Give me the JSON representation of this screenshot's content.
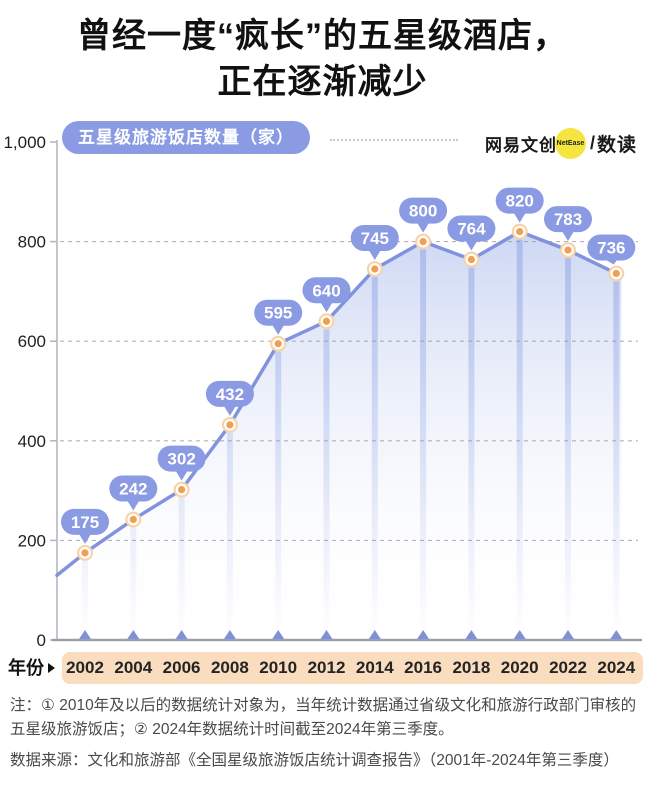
{
  "title": {
    "line1": "曾经一度“疯长”的五星级酒店，",
    "line2": "正在逐渐减少"
  },
  "header": {
    "legend_label": "五星级旅游饭店数量（家）",
    "brand": {
      "name": "网易文创",
      "badge": "NetEase",
      "separator": "/",
      "sub": "数读"
    }
  },
  "chart_data": {
    "type": "line",
    "title": "五星级旅游饭店数量（家）",
    "categories": [
      "2002",
      "2004",
      "2006",
      "2008",
      "2010",
      "2012",
      "2014",
      "2016",
      "2018",
      "2020",
      "2022",
      "2024"
    ],
    "values": [
      175,
      242,
      302,
      432,
      595,
      640,
      745,
      800,
      764,
      820,
      783,
      736
    ],
    "line_start_value": 130,
    "x_axis_label": "年份",
    "ylim": [
      0,
      1000
    ],
    "yticks": {
      "values": [
        0,
        200,
        400,
        600,
        800,
        1000
      ],
      "labels": [
        "0",
        "200",
        "400",
        "600",
        "800",
        "1,000"
      ]
    },
    "grid": "horizontal dashed lines at 200/400/600/800",
    "legend_position": "top-left",
    "marker_style": "orange dot with white ring, value badge above each point, triangle tick on baseline"
  },
  "colors": {
    "accent": "#8a9ae3",
    "line": "#8193dd",
    "triangle": "#7e90d8",
    "area_top": "#c9d4f3",
    "streak": "#96aae8",
    "marker_core": "#f0a052",
    "marker_halo": "#f7d3a9",
    "grid": "#9a9aa0",
    "axis": "#9aa1ab",
    "tick_text": "#1f1f1f",
    "year_strip": "#fadcbe",
    "brand_yellow": "#f6e53e"
  },
  "footer": {
    "note": "注：① 2010年及以后的数据统计对象为，当年统计数据通过省级文化和旅游行政部门审核的五星级旅游饭店；② 2024年数据统计时间截至2024年第三季度。",
    "source": "数据来源：文化和旅游部《全国星级旅游饭店统计调查报告》（2001年-2024年第三季度）"
  }
}
